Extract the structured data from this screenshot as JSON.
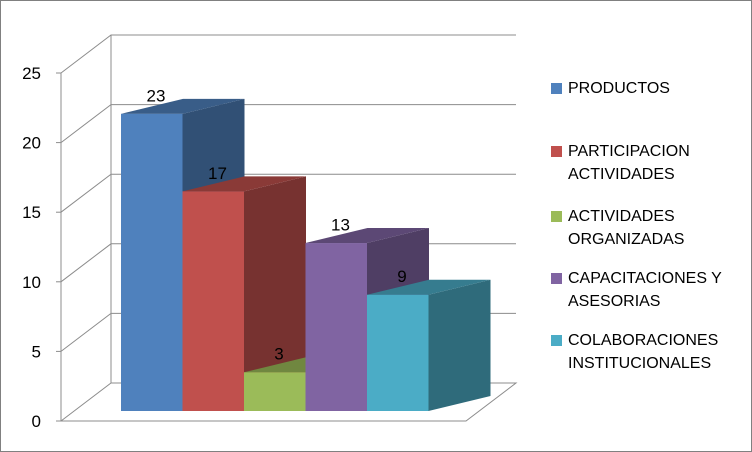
{
  "chart_data": {
    "type": "bar",
    "style": "3d-clustered",
    "categories": [
      "PRODUCTOS",
      "PARTICIPACION ACTIVIDADES",
      "ACTIVIDADES ORGANIZADAS",
      "CAPACITACIONES Y ASESORIAS",
      "COLABORACIONES INSTITUCIONALES"
    ],
    "values": [
      23,
      17,
      3,
      13,
      9
    ],
    "data_labels": [
      "23",
      "17",
      "3",
      "13",
      "9"
    ],
    "colors": [
      "#4F81BD",
      "#C0504D",
      "#9BBB59",
      "#8064A2",
      "#4BACC6"
    ],
    "yticks": [
      "0",
      "5",
      "10",
      "15",
      "20",
      "25"
    ],
    "ylim": [
      0,
      25
    ],
    "grid": true,
    "legend_position": "right",
    "legend": [
      {
        "label": "PRODUCTOS",
        "color": "#4F81BD"
      },
      {
        "label": "PARTICIPACION\nACTIVIDADES",
        "color": "#C0504D"
      },
      {
        "label": "ACTIVIDADES\nORGANIZADAS",
        "color": "#9BBB59"
      },
      {
        "label": "CAPACITACIONES Y\nASESORIAS",
        "color": "#8064A2"
      },
      {
        "label": "COLABORACIONES\nINSTITUCIONALES",
        "color": "#4BACC6"
      }
    ]
  }
}
